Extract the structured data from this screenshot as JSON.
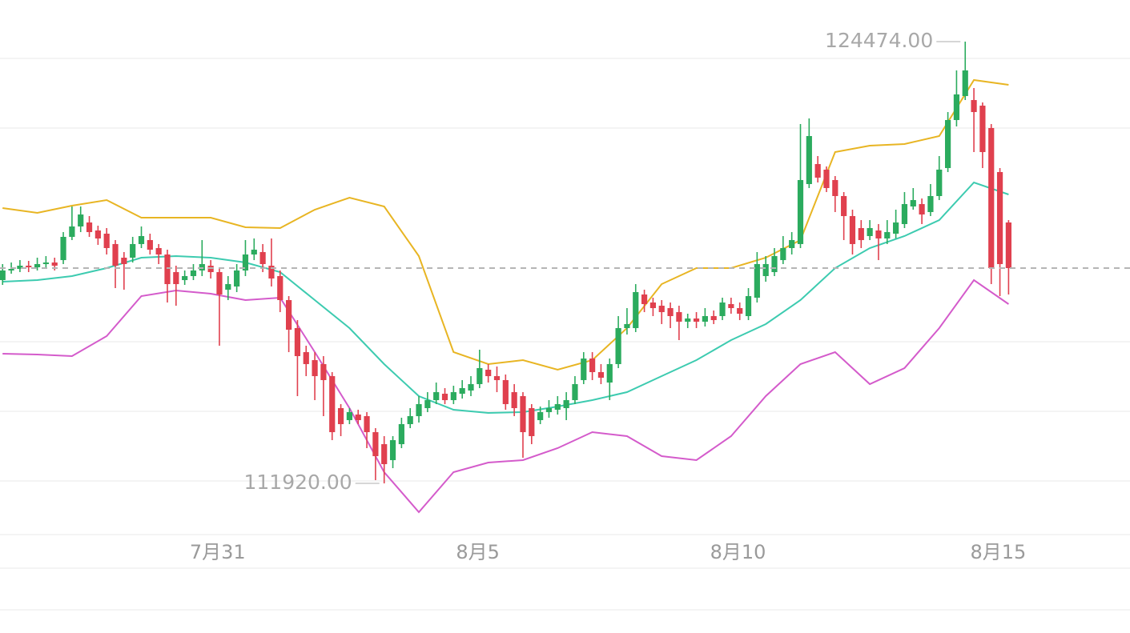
{
  "chart_data": {
    "type": "candlestick",
    "up_color": "#2bab5e",
    "down_color": "#e0404e",
    "xlim": [
      -0.3,
      130
    ],
    "ylim": [
      110466,
      125656
    ],
    "xticks": [
      {
        "value": 24.8,
        "label": "7月31"
      },
      {
        "value": 54.8,
        "label": "8月5"
      },
      {
        "value": 84.8,
        "label": "8月10"
      },
      {
        "value": 114.8,
        "label": "8月15"
      }
    ],
    "annotations": [
      "124474.00",
      "111920.00"
    ],
    "open": [
      117697,
      117970,
      118015,
      118106,
      118061,
      118152,
      118197,
      118265,
      118925,
      119221,
      119334,
      119107,
      119016,
      118721,
      118334,
      118334,
      118721,
      118834,
      118607,
      118425,
      117924,
      117697,
      117811,
      117970,
      118106,
      117924,
      117424,
      117515,
      117970,
      118425,
      118493,
      118106,
      117811,
      117129,
      116333,
      115650,
      115423,
      115310,
      114968,
      114059,
      113718,
      113877,
      113831,
      113376,
      113035,
      112581,
      113035,
      113604,
      113831,
      114059,
      114286,
      114468,
      114286,
      114468,
      114559,
      114741,
      115150,
      114968,
      114855,
      114513,
      114400,
      114059,
      113718,
      113945,
      114013,
      114059,
      114286,
      114855,
      115468,
      115082,
      114786,
      115310,
      116333,
      116333,
      117288,
      117060,
      116969,
      116901,
      116787,
      116515,
      116606,
      116515,
      116674,
      116674,
      117015,
      116901,
      116674,
      117197,
      117811,
      117924,
      118265,
      118607,
      118721,
      120426,
      120994,
      120835,
      120540,
      120085,
      119516,
      119175,
      118948,
      119107,
      118880,
      119016,
      119289,
      119789,
      119857,
      119630,
      120085,
      120881,
      122245,
      122927,
      122813,
      122654,
      122018,
      120767,
      119334
    ],
    "high": [
      118152,
      118197,
      118266,
      118243,
      118334,
      118379,
      118334,
      119061,
      119789,
      119789,
      119516,
      119243,
      119175,
      118834,
      118493,
      118925,
      119221,
      119016,
      118721,
      118561,
      118106,
      117970,
      118152,
      118834,
      118265,
      118038,
      117811,
      118152,
      118834,
      118880,
      118721,
      118880,
      117970,
      117242,
      116560,
      115832,
      115650,
      115537,
      115082,
      114173,
      114059,
      114013,
      113945,
      113490,
      113263,
      113263,
      113786,
      114059,
      114400,
      114513,
      114786,
      114627,
      114695,
      114855,
      114968,
      115719,
      115310,
      115241,
      115014,
      114741,
      114513,
      114173,
      114104,
      114286,
      114400,
      114513,
      114968,
      115650,
      115650,
      115310,
      115468,
      116674,
      116901,
      117583,
      117424,
      117197,
      117129,
      117060,
      116969,
      116742,
      116787,
      116901,
      116833,
      117197,
      117197,
      117060,
      117470,
      118493,
      118379,
      118607,
      118948,
      119061,
      122131,
      122291,
      121222,
      120926,
      120653,
      120198,
      119698,
      119402,
      119402,
      119289,
      119402,
      119698,
      120198,
      120312,
      120016,
      120426,
      121222,
      122472,
      123655,
      124474,
      123155,
      122745,
      122131,
      120881,
      119402
    ],
    "low": [
      117561,
      117879,
      117924,
      117924,
      117970,
      118015,
      117970,
      118152,
      118834,
      119061,
      118925,
      118698,
      118425,
      117470,
      117424,
      118197,
      118607,
      118425,
      118152,
      117060,
      116969,
      117561,
      117697,
      117811,
      117742,
      115832,
      117129,
      117356,
      117811,
      118265,
      117924,
      117515,
      116787,
      115650,
      114400,
      114968,
      114286,
      113831,
      113149,
      113263,
      113604,
      113604,
      112922,
      112012,
      111920,
      112353,
      112922,
      113490,
      113649,
      113945,
      114173,
      114173,
      114173,
      114331,
      114400,
      114627,
      114786,
      114513,
      114013,
      113831,
      112649,
      113035,
      113604,
      113786,
      113877,
      113718,
      114173,
      114741,
      114855,
      114741,
      114286,
      115196,
      116151,
      116219,
      116787,
      116674,
      116447,
      116333,
      115992,
      116333,
      116333,
      116378,
      116447,
      116560,
      116742,
      116560,
      116560,
      117060,
      117651,
      117811,
      118152,
      118425,
      118607,
      120312,
      120471,
      120198,
      119630,
      118834,
      118425,
      118607,
      118834,
      118265,
      118721,
      118880,
      119175,
      119698,
      119289,
      119516,
      119971,
      120767,
      122063,
      122813,
      121335,
      120881,
      117583,
      117242,
      117288
    ],
    "close": [
      117970,
      118015,
      118106,
      118061,
      118152,
      118197,
      118106,
      118925,
      119221,
      119561,
      119061,
      118880,
      118607,
      118106,
      118152,
      118721,
      118948,
      118561,
      118425,
      117583,
      117583,
      117811,
      117970,
      118152,
      117924,
      117288,
      117583,
      117970,
      118425,
      118561,
      118152,
      117742,
      117129,
      116287,
      115537,
      115310,
      114968,
      114855,
      113376,
      113604,
      113945,
      113718,
      113376,
      112694,
      112467,
      113149,
      113604,
      113831,
      114173,
      114286,
      114513,
      114286,
      114513,
      114627,
      114741,
      115196,
      114968,
      114855,
      114173,
      114059,
      113376,
      113263,
      113945,
      114059,
      114173,
      114286,
      114741,
      115468,
      115082,
      114923,
      115310,
      116333,
      116447,
      117356,
      117015,
      116901,
      116787,
      116674,
      116515,
      116606,
      116515,
      116674,
      116560,
      117060,
      116901,
      116742,
      117242,
      118152,
      118152,
      118379,
      118607,
      118834,
      120540,
      121790,
      120608,
      120312,
      120085,
      119516,
      118721,
      118834,
      119175,
      118880,
      119061,
      119334,
      119857,
      119971,
      119561,
      120085,
      120836,
      122245,
      122973,
      123655,
      122472,
      121335,
      118038,
      118152,
      118038
    ],
    "overlays": [
      {
        "color": "#e8b523",
        "x": [
          0,
          4,
          8,
          12,
          16,
          20,
          24,
          28,
          32,
          36,
          40,
          44,
          48,
          52,
          56,
          60,
          64,
          68,
          72,
          76,
          80,
          84,
          88,
          92,
          96,
          100,
          104,
          108,
          112,
          116
        ],
        "values": [
          119744,
          119607,
          119812,
          119971,
          119471,
          119471,
          119471,
          119198,
          119175,
          119698,
          120039,
          119789,
          118379,
          115650,
          115310,
          115423,
          115150,
          115423,
          116333,
          117583,
          118038,
          118038,
          118334,
          118834,
          121335,
          121518,
          121563,
          121790,
          123382,
          123246
        ]
      },
      {
        "color": "#3dcbb0",
        "x": [
          0,
          4,
          8,
          12,
          16,
          20,
          24,
          28,
          32,
          36,
          40,
          44,
          48,
          52,
          56,
          60,
          64,
          68,
          72,
          76,
          80,
          84,
          88,
          92,
          96,
          100,
          104,
          108,
          112,
          116
        ],
        "values": [
          117651,
          117697,
          117811,
          118038,
          118334,
          118379,
          118334,
          118197,
          117924,
          117129,
          116333,
          115310,
          114400,
          114013,
          113922,
          113945,
          114104,
          114286,
          114513,
          114968,
          115423,
          115992,
          116447,
          117129,
          118038,
          118607,
          118948,
          119402,
          120471,
          120130
        ]
      },
      {
        "color": "#d45bcb",
        "x": [
          0,
          4,
          8,
          12,
          16,
          20,
          24,
          28,
          32,
          36,
          40,
          44,
          48,
          52,
          56,
          60,
          64,
          68,
          72,
          76,
          80,
          84,
          88,
          92,
          96,
          100,
          104,
          108,
          112,
          116
        ],
        "values": [
          115605,
          115582,
          115537,
          116105,
          117242,
          117401,
          117310,
          117129,
          117197,
          115650,
          114059,
          112239,
          111102,
          112239,
          112512,
          112581,
          112922,
          113376,
          113263,
          112694,
          112581,
          113263,
          114400,
          115310,
          115650,
          114741,
          115196,
          116333,
          117697,
          117015
        ]
      }
    ]
  }
}
